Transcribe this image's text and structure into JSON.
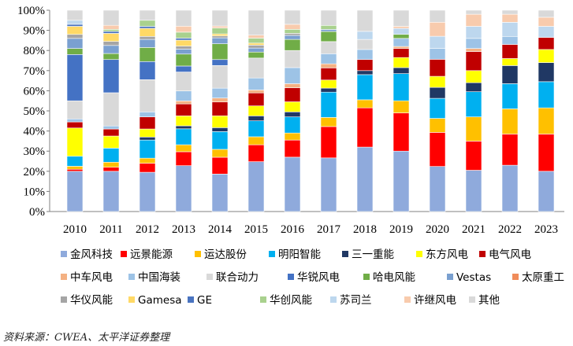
{
  "chart_data": {
    "type": "bar",
    "stacked": true,
    "percent": true,
    "title": "",
    "xlabel": "",
    "ylabel": "",
    "ylim": [
      0,
      100
    ],
    "y_ticks": [
      "0%",
      "10%",
      "20%",
      "30%",
      "40%",
      "50%",
      "60%",
      "70%",
      "80%",
      "90%",
      "100%"
    ],
    "categories": [
      "2010",
      "2011",
      "2012",
      "2013",
      "2014",
      "2015",
      "2016",
      "2017",
      "2018",
      "2019",
      "2020",
      "2021",
      "2022",
      "2023"
    ],
    "series": [
      {
        "name": "金风科技",
        "color": "#8faadc",
        "values": [
          20,
          20,
          19.5,
          23,
          19,
          25,
          27,
          26.5,
          32,
          30,
          22.5,
          20.5,
          23,
          20
        ]
      },
      {
        "name": "远景能源",
        "color": "#ff0000",
        "values": [
          1,
          2,
          4.5,
          7,
          8.5,
          8.5,
          8.5,
          15.5,
          19.5,
          19,
          17,
          14.5,
          15.5,
          18.5
        ]
      },
      {
        "name": "运达股份",
        "color": "#ffc000",
        "values": [
          1.5,
          2.5,
          2.5,
          3.5,
          4,
          4,
          3.5,
          4.5,
          4,
          6,
          7,
          12,
          12.5,
          13
        ]
      },
      {
        "name": "明阳智能",
        "color": "#00b0f0",
        "values": [
          5,
          7,
          9,
          8,
          9,
          8,
          8,
          12.5,
          12.5,
          13.5,
          10,
          12.5,
          12.5,
          13
        ]
      },
      {
        "name": "三一重能",
        "color": "#203864",
        "values": [
          0,
          0,
          1.5,
          1.5,
          2,
          2.5,
          2.5,
          2,
          2,
          3,
          5.5,
          4.5,
          9,
          9.5
        ]
      },
      {
        "name": "东方风电",
        "color": "#ffff00",
        "values": [
          14,
          6,
          4,
          5,
          6,
          5,
          5,
          4,
          0,
          5,
          5.5,
          6,
          3.5,
          6.5
        ]
      },
      {
        "name": "电气风电",
        "color": "#c00000",
        "values": [
          3,
          3.5,
          6,
          6,
          7,
          6.5,
          7,
          6,
          5.5,
          4.5,
          8.5,
          9.5,
          7,
          6
        ]
      },
      {
        "name": "中车风电",
        "color": "#f4b183",
        "values": [
          0,
          0,
          0,
          1.5,
          2,
          1.5,
          2,
          2,
          0,
          1,
          0,
          1.5,
          0,
          0
        ]
      },
      {
        "name": "中国海装",
        "color": "#9dc3e6",
        "values": [
          1.5,
          1.5,
          2.5,
          5,
          5,
          6,
          8,
          5,
          5,
          4,
          5.5,
          5,
          4,
          0
        ]
      },
      {
        "name": "联合动力",
        "color": "#d9d9d9",
        "values": [
          9,
          16.5,
          16,
          9.5,
          11.5,
          10,
          8.5,
          6,
          5,
          0,
          0,
          0,
          0,
          0
        ]
      },
      {
        "name": "华锐风电",
        "color": "#4472c4",
        "values": [
          23,
          16.5,
          9,
          3,
          3,
          0,
          0,
          0,
          0,
          0,
          0,
          0,
          0,
          0
        ]
      },
      {
        "name": "哈电风能",
        "color": "#70ad47",
        "values": [
          3,
          3,
          7,
          6,
          8,
          3,
          5.5,
          5,
          0,
          2,
          0,
          0,
          0,
          0
        ]
      },
      {
        "name": "Vestas",
        "color": "#7aa0d0",
        "values": [
          5,
          4,
          4,
          2.5,
          3,
          2,
          2,
          1,
          0,
          0,
          0,
          0,
          0,
          0
        ]
      },
      {
        "name": "太原重工",
        "color": "#f08c5a",
        "values": [
          0,
          0,
          0,
          0,
          0,
          0,
          0,
          0,
          0,
          0,
          0,
          0,
          0,
          0
        ]
      },
      {
        "name": "华仪风能",
        "color": "#a5a5a5",
        "values": [
          2,
          2,
          1.5,
          1.5,
          1,
          1.5,
          1,
          0,
          0,
          0,
          0,
          0,
          0,
          0
        ]
      },
      {
        "name": "Gamesa",
        "color": "#ffd966",
        "values": [
          4,
          4,
          4,
          3,
          1,
          1,
          0,
          0,
          0,
          0,
          0,
          0,
          0,
          0
        ]
      },
      {
        "name": "GE",
        "color": "#4a74c0",
        "values": [
          1,
          1,
          1,
          1,
          0,
          0,
          0,
          0,
          0,
          0,
          0,
          0,
          0,
          0
        ]
      },
      {
        "name": "华创风能",
        "color": "#a9d18e",
        "values": [
          0,
          1,
          3,
          3,
          3,
          2.5,
          2,
          2,
          0,
          0,
          0,
          0,
          0,
          0
        ]
      },
      {
        "name": "苏司兰",
        "color": "#bdd7ee",
        "values": [
          2,
          0,
          0,
          0,
          0,
          0,
          0,
          0,
          4,
          3,
          6,
          6,
          7,
          5.5
        ]
      },
      {
        "name": "许继风电",
        "color": "#f8cbad",
        "values": [
          0,
          2,
          0,
          3,
          1,
          1.5,
          2.5,
          0,
          0,
          1,
          7,
          6,
          4,
          4.5
        ]
      },
      {
        "name": "其他",
        "color": "#d9d9d9",
        "values": [
          5,
          7.5,
          5,
          8,
          8,
          12.5,
          7,
          7.5,
          10.5,
          8,
          6,
          2,
          2,
          3.5
        ]
      }
    ],
    "legend_position": "bottom"
  },
  "source": "资料来源：CWEA、太平洋证券整理"
}
